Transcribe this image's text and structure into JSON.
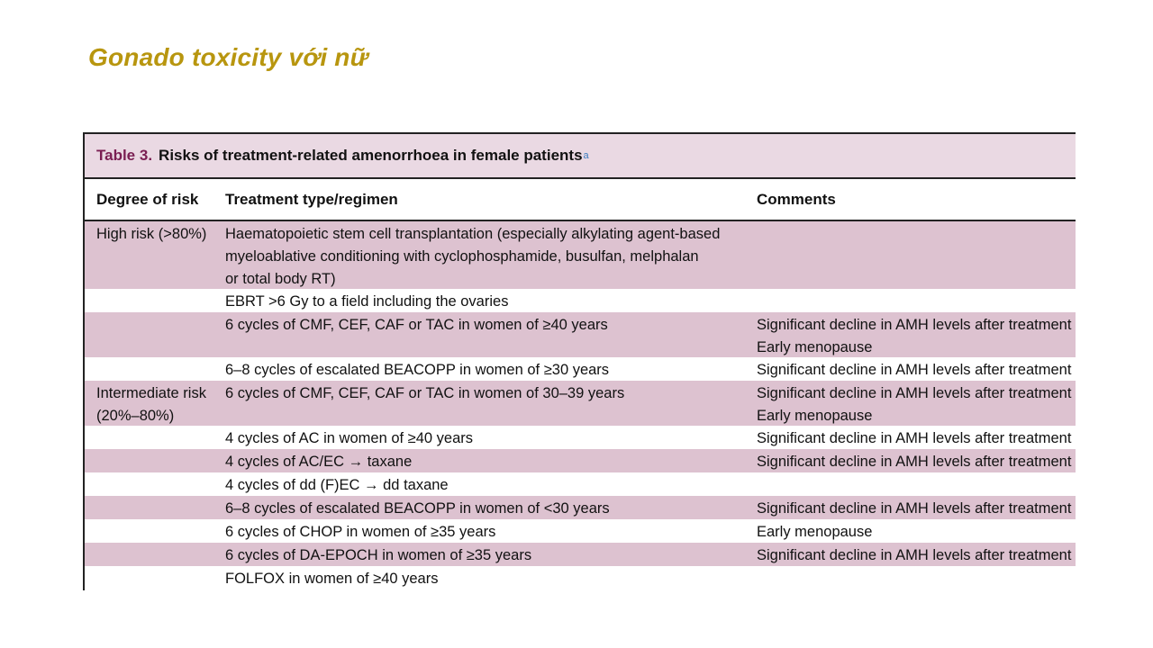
{
  "slide": {
    "title": "Gonado toxicity với nữ"
  },
  "table": {
    "caption_number": "Table 3.",
    "caption_text": "Risks of treatment-related amenorrhoea in female patients",
    "caption_sup": "a",
    "headers": [
      "Degree of risk",
      "Treatment type/regimen",
      "Comments"
    ],
    "rows": [
      {
        "risk": "High risk (>80%)",
        "treatment": "Haematopoietic stem cell transplantation (especially alkylating agent-based\nmyeloablative conditioning with cyclophosphamide, busulfan, melphalan\nor total body RT)",
        "comments": ""
      },
      {
        "risk": "",
        "treatment": "EBRT >6 Gy to a field including the ovaries",
        "comments": ""
      },
      {
        "risk": "",
        "treatment": "6 cycles of CMF, CEF, CAF or TAC in women of ≥40 years",
        "comments": "Significant decline in AMH levels after treatment\nEarly menopause"
      },
      {
        "risk": "",
        "treatment": "6–8 cycles of escalated BEACOPP in women of ≥30 years",
        "comments": "Significant decline in AMH levels after treatment"
      },
      {
        "risk": "Intermediate risk\n(20%–80%)",
        "treatment": "6 cycles of CMF, CEF, CAF or TAC in women of 30–39 years",
        "comments": "Significant decline in AMH levels after treatment\nEarly menopause"
      },
      {
        "risk": "",
        "treatment": "4 cycles of AC in women of ≥40 years",
        "comments": "Significant decline in AMH levels after treatment"
      },
      {
        "risk": "",
        "treatment": "4 cycles of AC/EC → taxane",
        "comments": "Significant decline in AMH levels after treatment"
      },
      {
        "risk": "",
        "treatment": "4 cycles of dd (F)EC → dd taxane",
        "comments": ""
      },
      {
        "risk": "",
        "treatment": "6–8 cycles of escalated BEACOPP in women of <30 years",
        "comments": "Significant decline in AMH levels after treatment"
      },
      {
        "risk": "",
        "treatment": "6 cycles of CHOP in women of ≥35 years",
        "comments": "Early menopause"
      },
      {
        "risk": "",
        "treatment": "6 cycles of DA-EPOCH in women of ≥35 years",
        "comments": "Significant decline in AMH levels after treatment"
      },
      {
        "risk": "",
        "treatment": "FOLFOX in women of ≥40 years",
        "comments": ""
      }
    ]
  },
  "colors": {
    "title": "#b8960f",
    "caption_bg": "#ead9e3",
    "row_shade": "#ddc2d0",
    "caption_number": "#7a1e52"
  }
}
